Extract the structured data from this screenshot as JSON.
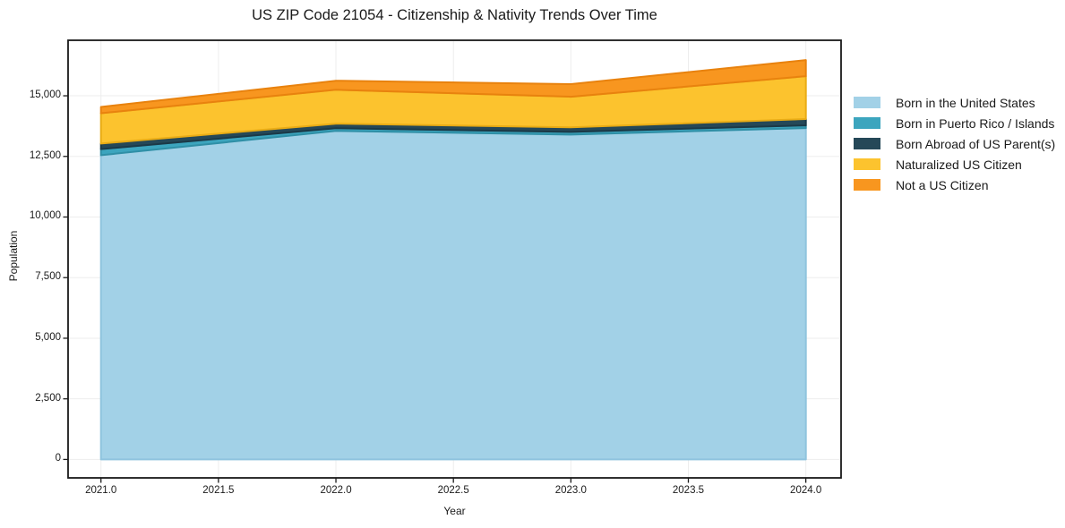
{
  "title": "US ZIP Code 21054 - Citizenship & Nativity Trends Over Time",
  "xlabel": "Year",
  "ylabel": "Population",
  "chart_data": {
    "type": "area",
    "stacked": true,
    "title": "US ZIP Code 21054 - Citizenship & Nativity Trends Over Time",
    "xlabel": "Year",
    "ylabel": "Population",
    "grid": true,
    "legend_position": "right-outside",
    "x": [
      2021,
      2022,
      2023,
      2024
    ],
    "series": [
      {
        "name": "Born in the United States",
        "color": "#a2d1e7",
        "edge_color": "#8fc4de",
        "values": [
          12550,
          13550,
          13400,
          13670
        ]
      },
      {
        "name": "Born in Puerto Rico / Islands",
        "color": "#3ca5be",
        "edge_color": "#2f8fa6",
        "values": [
          250,
          110,
          110,
          110
        ]
      },
      {
        "name": "Born Abroad of US Parent(s)",
        "color": "#254858",
        "edge_color": "#1b3947",
        "values": [
          230,
          190,
          190,
          260
        ]
      },
      {
        "name": "Naturalized US Citizen",
        "color": "#fcc32e",
        "edge_color": "#e9ac15",
        "values": [
          1250,
          1400,
          1260,
          1770
        ]
      },
      {
        "name": "Not a US Citizen",
        "color": "#f8961f",
        "edge_color": "#e8820e",
        "values": [
          260,
          370,
          520,
          665
        ]
      }
    ],
    "x_ticks": [
      2021.0,
      2021.5,
      2022.0,
      2022.5,
      2023.0,
      2023.5,
      2024.0
    ],
    "x_tick_labels": [
      "2021.0",
      "2021.5",
      "2022.0",
      "2022.5",
      "2023.0",
      "2023.5",
      "2024.0"
    ],
    "y_ticks": [
      0,
      2500,
      5000,
      7500,
      10000,
      12500,
      15000
    ],
    "y_tick_labels": [
      "0",
      "2,500",
      "5,000",
      "7,500",
      "10,000",
      "12,500",
      "15,000"
    ],
    "xlim": [
      2020.86,
      2024.15
    ],
    "ylim": [
      -760,
      17290
    ],
    "grid_color": "#ededed",
    "frame_color": "#1a1a1a"
  }
}
